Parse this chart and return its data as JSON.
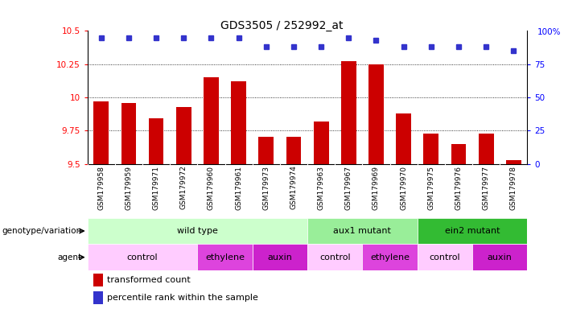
{
  "title": "GDS3505 / 252992_at",
  "samples": [
    "GSM179958",
    "GSM179959",
    "GSM179971",
    "GSM179972",
    "GSM179960",
    "GSM179961",
    "GSM179973",
    "GSM179974",
    "GSM179963",
    "GSM179967",
    "GSM179969",
    "GSM179970",
    "GSM179975",
    "GSM179976",
    "GSM179977",
    "GSM179978"
  ],
  "transformed_count": [
    9.97,
    9.96,
    9.84,
    9.93,
    10.15,
    10.12,
    9.7,
    9.7,
    9.82,
    10.27,
    10.25,
    9.88,
    9.73,
    9.65,
    9.73,
    9.53
  ],
  "percentile_rank": [
    95,
    95,
    95,
    95,
    95,
    95,
    88,
    88,
    88,
    95,
    93,
    88,
    88,
    88,
    88,
    85
  ],
  "ymin": 9.5,
  "ymax": 10.5,
  "yticks_left": [
    9.5,
    9.75,
    10.0,
    10.25,
    10.5
  ],
  "yticks_right": [
    0,
    25,
    50,
    75,
    100
  ],
  "bar_color": "#cc0000",
  "dot_color": "#3333cc",
  "plot_bg": "#ffffff",
  "label_bg": "#d0d0d0",
  "groups": [
    {
      "label": "wild type",
      "start": 0,
      "end": 8,
      "color": "#ccffcc"
    },
    {
      "label": "aux1 mutant",
      "start": 8,
      "end": 12,
      "color": "#99ee99"
    },
    {
      "label": "ein2 mutant",
      "start": 12,
      "end": 16,
      "color": "#33bb33"
    }
  ],
  "agents": [
    {
      "label": "control",
      "start": 0,
      "end": 4,
      "color": "#ffccff"
    },
    {
      "label": "ethylene",
      "start": 4,
      "end": 6,
      "color": "#dd44dd"
    },
    {
      "label": "auxin",
      "start": 6,
      "end": 8,
      "color": "#cc22cc"
    },
    {
      "label": "control",
      "start": 8,
      "end": 10,
      "color": "#ffccff"
    },
    {
      "label": "ethylene",
      "start": 10,
      "end": 12,
      "color": "#dd44dd"
    },
    {
      "label": "control",
      "start": 12,
      "end": 14,
      "color": "#ffccff"
    },
    {
      "label": "auxin",
      "start": 14,
      "end": 16,
      "color": "#cc22cc"
    }
  ],
  "legend_labels": [
    "transformed count",
    "percentile rank within the sample"
  ],
  "legend_colors": [
    "#cc0000",
    "#3333cc"
  ],
  "n": 16
}
